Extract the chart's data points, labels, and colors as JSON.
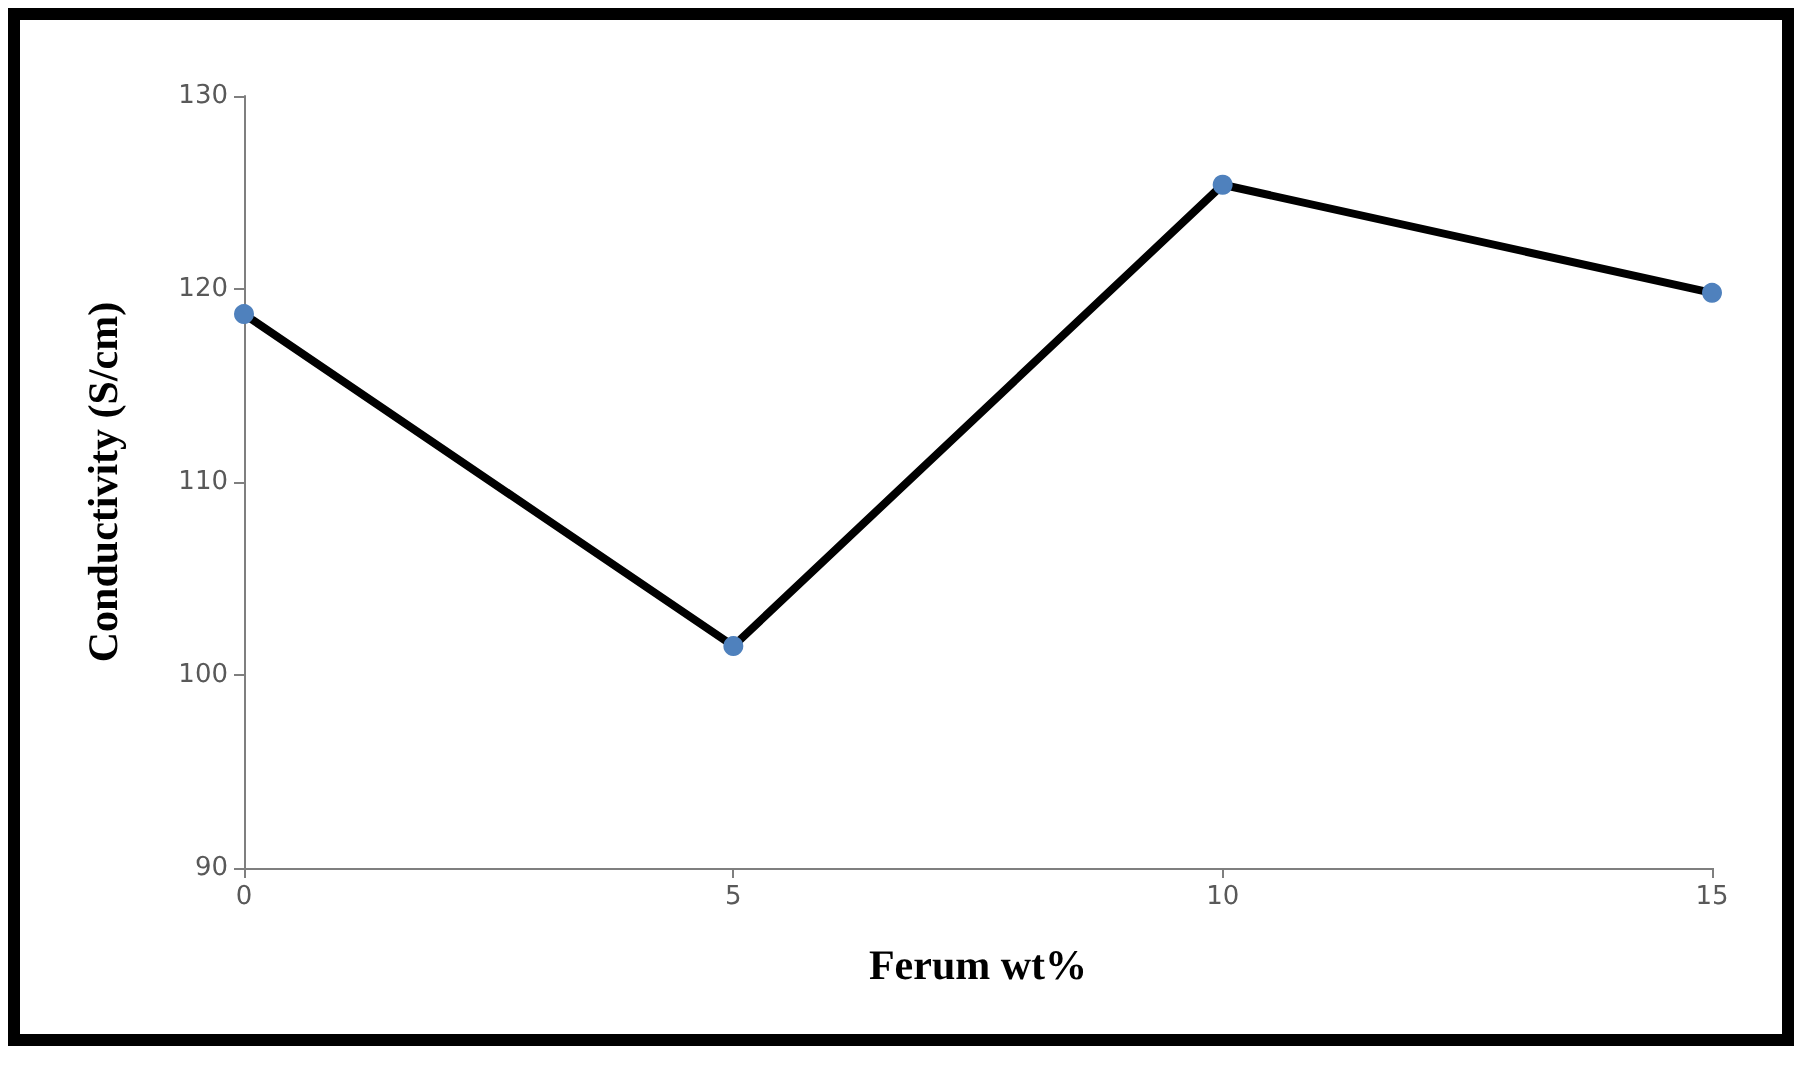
{
  "chart_data": {
    "type": "line",
    "xlabel": "Ferum wt%",
    "ylabel": "Conductivity (S/cm)",
    "x": [
      0,
      5,
      10,
      15
    ],
    "series": [
      {
        "color": "#000000",
        "colors": [
          "#4f81bd",
          "#4f81bd",
          "#4f81bd",
          "#4f81bd"
        ],
        "values": [
          118.7,
          101.5,
          125.4,
          119.8
        ]
      }
    ],
    "xlim": [
      0,
      15
    ],
    "xticks": [
      0,
      5,
      10,
      15
    ],
    "ylim": [
      90,
      130
    ],
    "yticks": [
      90,
      100,
      110,
      120,
      130
    ],
    "grid": false,
    "marker": "circle",
    "line_style": "solid"
  }
}
